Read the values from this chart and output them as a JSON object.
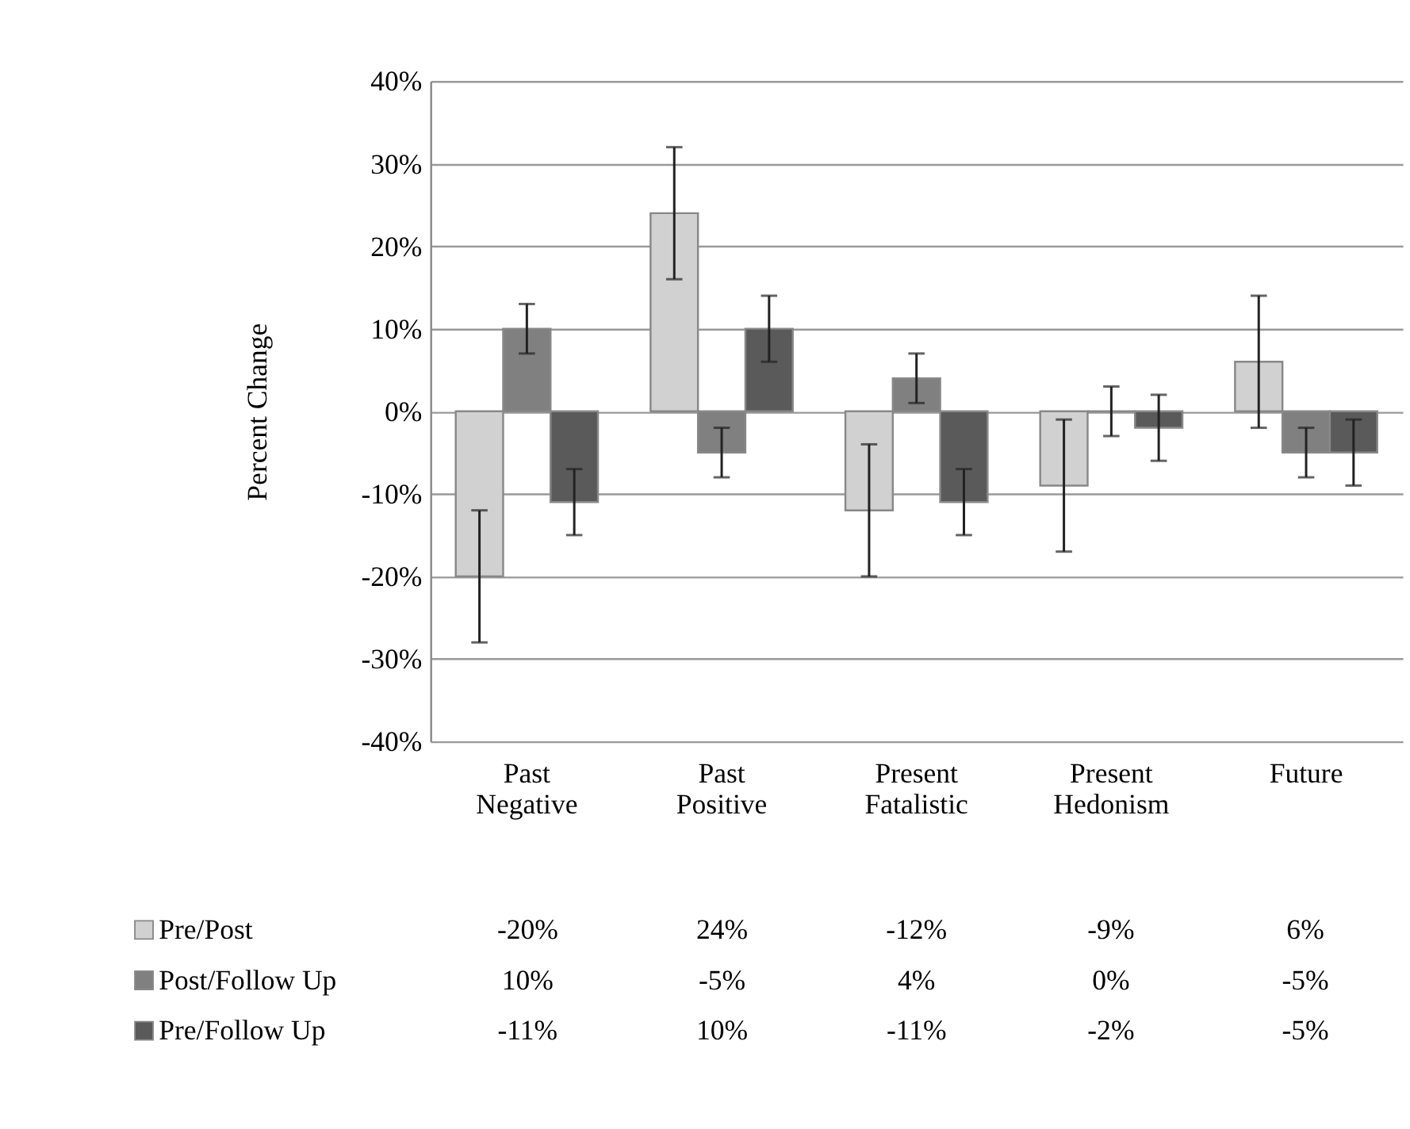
{
  "chart_data": {
    "type": "bar",
    "ylabel": "Percent Change",
    "categories": [
      "Past Negative",
      "Past Positive",
      "Present Fatalistic",
      "Present Hedonism",
      "Future"
    ],
    "series": [
      {
        "name": "Pre/Post",
        "color": "#d0d1d0",
        "values": [
          -20,
          24,
          -12,
          -9,
          6
        ],
        "errors": [
          8,
          8,
          8,
          8,
          8
        ],
        "value_labels": [
          "-20%",
          "24%",
          "-12%",
          "-9%",
          "6%"
        ]
      },
      {
        "name": "Post/Follow Up",
        "color": "#808080",
        "values": [
          10,
          -5,
          4,
          0,
          -5
        ],
        "errors": [
          3,
          3,
          3,
          3,
          3
        ],
        "value_labels": [
          "10%",
          "-5%",
          "4%",
          "0%",
          "-5%"
        ]
      },
      {
        "name": "Pre/Follow Up",
        "color": "#5a5a5a",
        "values": [
          -11,
          10,
          -11,
          -2,
          -5
        ],
        "errors": [
          4,
          4,
          4,
          4,
          4
        ],
        "value_labels": [
          "-11%",
          "10%",
          "-11%",
          "-2%",
          "-5%"
        ]
      }
    ],
    "ylim": [
      -40,
      40
    ],
    "yticks": [
      {
        "value": -40,
        "label": "-40%"
      },
      {
        "value": -30,
        "label": "-30%"
      },
      {
        "value": -20,
        "label": "-20%"
      },
      {
        "value": -10,
        "label": "-10%"
      },
      {
        "value": 0,
        "label": "0%"
      },
      {
        "value": 10,
        "label": "10%"
      },
      {
        "value": 20,
        "label": "20%"
      },
      {
        "value": 30,
        "label": "30%"
      },
      {
        "value": 40,
        "label": "40%"
      }
    ],
    "grid": "y",
    "legend": "bottom"
  }
}
